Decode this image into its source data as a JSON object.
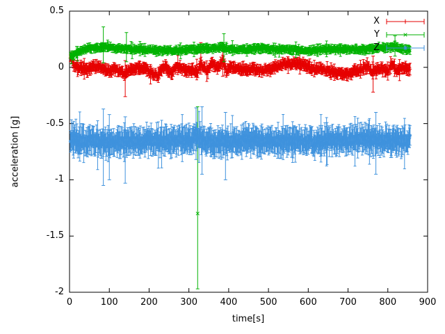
{
  "figure": {
    "background": "#ffffff",
    "axis_color": "#000000"
  },
  "chart_data": {
    "type": "scatter",
    "style": "points-with-yerrorbars",
    "title": "",
    "xlabel": "time[s]",
    "ylabel": "acceleration [g]",
    "xlim": [
      0,
      900
    ],
    "ylim": [
      -2,
      0.5
    ],
    "xticks": [
      0,
      100,
      200,
      300,
      400,
      500,
      600,
      700,
      800,
      900
    ],
    "yticks": [
      0.5,
      0,
      -0.5,
      -1,
      -1.5,
      -2
    ],
    "grid": false,
    "legend_position": "top-right",
    "noise_seed": 7,
    "sample_step": 1.4,
    "t_start": 2,
    "t_end": 856,
    "series": [
      {
        "name": "X",
        "color": "#e60000",
        "marker": "plus",
        "noise": 0.018,
        "err_mean": 0.028,
        "err_var": 0.025,
        "spike_prob": 0.05,
        "spike_mult": 1.9,
        "trend": [
          [
            2,
            0.1
          ],
          [
            8,
            0.04
          ],
          [
            15,
            0.0
          ],
          [
            30,
            -0.01
          ],
          [
            45,
            -0.02
          ],
          [
            60,
            0.01
          ],
          [
            75,
            0.0
          ],
          [
            90,
            -0.02
          ],
          [
            100,
            -0.04
          ],
          [
            110,
            -0.02
          ],
          [
            125,
            -0.03
          ],
          [
            138,
            -0.06
          ],
          [
            150,
            -0.03
          ],
          [
            165,
            -0.01
          ],
          [
            180,
            0.0
          ],
          [
            195,
            -0.02
          ],
          [
            210,
            -0.06
          ],
          [
            222,
            -0.07
          ],
          [
            232,
            -0.02
          ],
          [
            240,
            0.02
          ],
          [
            248,
            -0.03
          ],
          [
            256,
            -0.06
          ],
          [
            265,
            -0.01
          ],
          [
            275,
            0.01
          ],
          [
            285,
            -0.02
          ],
          [
            300,
            -0.03
          ],
          [
            312,
            -0.02
          ],
          [
            322,
            -0.04
          ],
          [
            330,
            0.03
          ],
          [
            338,
            -0.01
          ],
          [
            348,
            -0.03
          ],
          [
            358,
            0.04
          ],
          [
            368,
            0.0
          ],
          [
            378,
            0.02
          ],
          [
            386,
            0.06
          ],
          [
            394,
            -0.03
          ],
          [
            405,
            0.0
          ],
          [
            420,
            -0.01
          ],
          [
            440,
            -0.02
          ],
          [
            460,
            -0.02
          ],
          [
            480,
            -0.03
          ],
          [
            500,
            -0.02
          ],
          [
            515,
            0.0
          ],
          [
            530,
            0.02
          ],
          [
            545,
            0.04
          ],
          [
            558,
            0.02
          ],
          [
            572,
            0.05
          ],
          [
            585,
            0.03
          ],
          [
            600,
            0.0
          ],
          [
            615,
            -0.02
          ],
          [
            630,
            -0.01
          ],
          [
            645,
            -0.03
          ],
          [
            660,
            -0.04
          ],
          [
            675,
            -0.05
          ],
          [
            690,
            -0.06
          ],
          [
            705,
            -0.05
          ],
          [
            720,
            -0.03
          ],
          [
            735,
            -0.02
          ],
          [
            750,
            0.01
          ],
          [
            762,
            -0.04
          ],
          [
            775,
            -0.01
          ],
          [
            788,
            -0.02
          ],
          [
            800,
            -0.03
          ],
          [
            810,
            0.02
          ],
          [
            822,
            -0.02
          ],
          [
            835,
            0.0
          ],
          [
            856,
            -0.01
          ]
        ],
        "outliers": [
          [
            140,
            -0.05,
            -0.26,
            0.06
          ],
          [
            330,
            0.04,
            -0.06,
            0.22
          ],
          [
            385,
            0.05,
            -0.08,
            0.2
          ],
          [
            763,
            -0.04,
            -0.22,
            0.1
          ]
        ]
      },
      {
        "name": "Y",
        "color": "#00b200",
        "marker": "cross",
        "noise": 0.012,
        "err_mean": 0.02,
        "err_var": 0.02,
        "spike_prob": 0.04,
        "spike_mult": 1.8,
        "trend": [
          [
            2,
            0.1
          ],
          [
            10,
            0.1
          ],
          [
            20,
            0.13
          ],
          [
            35,
            0.16
          ],
          [
            50,
            0.17
          ],
          [
            70,
            0.17
          ],
          [
            85,
            0.18
          ],
          [
            100,
            0.18
          ],
          [
            120,
            0.17
          ],
          [
            140,
            0.17
          ],
          [
            160,
            0.16
          ],
          [
            180,
            0.16
          ],
          [
            200,
            0.16
          ],
          [
            220,
            0.15
          ],
          [
            240,
            0.15
          ],
          [
            260,
            0.15
          ],
          [
            280,
            0.15
          ],
          [
            300,
            0.16
          ],
          [
            320,
            0.16
          ],
          [
            340,
            0.17
          ],
          [
            360,
            0.17
          ],
          [
            380,
            0.18
          ],
          [
            395,
            0.17
          ],
          [
            410,
            0.16
          ],
          [
            430,
            0.16
          ],
          [
            450,
            0.16
          ],
          [
            470,
            0.17
          ],
          [
            490,
            0.17
          ],
          [
            510,
            0.16
          ],
          [
            530,
            0.16
          ],
          [
            550,
            0.16
          ],
          [
            570,
            0.16
          ],
          [
            590,
            0.15
          ],
          [
            610,
            0.15
          ],
          [
            630,
            0.16
          ],
          [
            650,
            0.16
          ],
          [
            670,
            0.16
          ],
          [
            690,
            0.16
          ],
          [
            710,
            0.16
          ],
          [
            730,
            0.16
          ],
          [
            750,
            0.16
          ],
          [
            770,
            0.17
          ],
          [
            790,
            0.17
          ],
          [
            805,
            0.18
          ],
          [
            818,
            0.19
          ],
          [
            830,
            0.16
          ],
          [
            845,
            0.16
          ],
          [
            856,
            0.16
          ]
        ],
        "outliers": [
          [
            85,
            0.18,
            0.04,
            0.36
          ],
          [
            143,
            0.17,
            0.05,
            0.31
          ],
          [
            322,
            -1.3,
            -1.97,
            -0.35
          ],
          [
            388,
            0.18,
            0.05,
            0.3
          ],
          [
            818,
            0.2,
            0.1,
            0.28
          ]
        ]
      },
      {
        "name": "Z",
        "color": "#3f92dd",
        "marker": "star",
        "noise": 0.045,
        "err_mean": 0.065,
        "err_var": 0.06,
        "spike_prob": 0.05,
        "spike_mult": 1.9,
        "trend": [
          [
            2,
            -0.62
          ],
          [
            15,
            -0.65
          ],
          [
            30,
            -0.66
          ],
          [
            50,
            -0.66
          ],
          [
            70,
            -0.65
          ],
          [
            85,
            -0.66
          ],
          [
            100,
            -0.67
          ],
          [
            120,
            -0.66
          ],
          [
            140,
            -0.67
          ],
          [
            160,
            -0.66
          ],
          [
            180,
            -0.66
          ],
          [
            200,
            -0.65
          ],
          [
            220,
            -0.65
          ],
          [
            240,
            -0.66
          ],
          [
            260,
            -0.66
          ],
          [
            280,
            -0.65
          ],
          [
            300,
            -0.65
          ],
          [
            315,
            -0.63
          ],
          [
            330,
            -0.64
          ],
          [
            345,
            -0.65
          ],
          [
            360,
            -0.66
          ],
          [
            380,
            -0.66
          ],
          [
            400,
            -0.66
          ],
          [
            420,
            -0.66
          ],
          [
            440,
            -0.65
          ],
          [
            460,
            -0.65
          ],
          [
            480,
            -0.66
          ],
          [
            500,
            -0.66
          ],
          [
            520,
            -0.66
          ],
          [
            540,
            -0.66
          ],
          [
            560,
            -0.65
          ],
          [
            580,
            -0.65
          ],
          [
            600,
            -0.66
          ],
          [
            620,
            -0.66
          ],
          [
            640,
            -0.65
          ],
          [
            660,
            -0.65
          ],
          [
            680,
            -0.65
          ],
          [
            700,
            -0.65
          ],
          [
            720,
            -0.64
          ],
          [
            740,
            -0.64
          ],
          [
            760,
            -0.65
          ],
          [
            780,
            -0.65
          ],
          [
            800,
            -0.65
          ],
          [
            820,
            -0.65
          ],
          [
            840,
            -0.65
          ],
          [
            856,
            -0.65
          ]
        ],
        "outliers": [
          [
            85,
            -0.66,
            -1.05,
            -0.37
          ],
          [
            100,
            -0.7,
            -1.0,
            -0.42
          ],
          [
            140,
            -0.72,
            -1.03,
            -0.44
          ],
          [
            318,
            -0.55,
            -0.82,
            -0.36
          ],
          [
            333,
            -0.62,
            -0.95,
            -0.35
          ],
          [
            392,
            -0.7,
            -1.0,
            -0.4
          ],
          [
            770,
            -0.66,
            -0.95,
            -0.4
          ]
        ]
      }
    ]
  }
}
